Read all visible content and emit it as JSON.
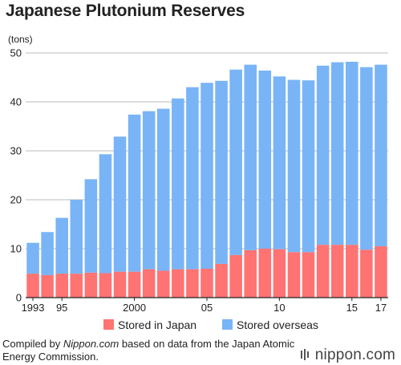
{
  "colors": {
    "japan": "#ff7373",
    "overseas": "#79b4f7",
    "axis": "#222222",
    "grid": "#bbbbbb"
  },
  "legend": {
    "japan_label": "Stored in Japan",
    "overseas_label": "Stored overseas"
  },
  "footer": {
    "prefix": "Compiled by ",
    "site": "Nippon.com",
    "suffix": " based on data from the Japan Atomic Energy Commission."
  },
  "brand": {
    "text": "nippon.com"
  },
  "chart_data": {
    "type": "bar",
    "stacked": true,
    "title": "Japanese Plutonium Reserves",
    "ylabel": "(tons)",
    "ylim": [
      0,
      50
    ],
    "yticks": [
      0,
      10,
      20,
      30,
      40,
      50
    ],
    "grid": true,
    "legend_position": "bottom",
    "categories": [
      "1993",
      "1994",
      "1995",
      "1996",
      "1997",
      "1998",
      "1999",
      "2000",
      "2001",
      "2002",
      "2003",
      "2004",
      "2005",
      "2006",
      "2007",
      "2008",
      "2009",
      "2010",
      "2011",
      "2012",
      "2013",
      "2014",
      "2015",
      "2016",
      "2017"
    ],
    "tick_labels": [
      {
        "category": "1993",
        "label": "1993"
      },
      {
        "category": "1995",
        "label": "95"
      },
      {
        "category": "2000",
        "label": "2000"
      },
      {
        "category": "2005",
        "label": "05"
      },
      {
        "category": "2010",
        "label": "10"
      },
      {
        "category": "2015",
        "label": "15"
      },
      {
        "category": "2017",
        "label": "17"
      }
    ],
    "series": [
      {
        "name": "Stored in Japan",
        "values": [
          4.9,
          4.6,
          4.9,
          4.9,
          5.1,
          5.0,
          5.3,
          5.3,
          5.8,
          5.5,
          5.8,
          5.8,
          5.9,
          6.9,
          8.7,
          9.7,
          10.0,
          9.9,
          9.3,
          9.3,
          10.8,
          10.8,
          10.8,
          9.8,
          10.5
        ]
      },
      {
        "name": "Stored overseas",
        "values": [
          6.3,
          8.8,
          11.4,
          15.1,
          19.1,
          24.3,
          27.6,
          32.1,
          32.3,
          33.1,
          34.9,
          37.2,
          38.0,
          37.4,
          37.9,
          37.9,
          36.4,
          35.3,
          35.2,
          35.1,
          36.6,
          37.3,
          37.4,
          37.3,
          37.1
        ]
      }
    ]
  }
}
